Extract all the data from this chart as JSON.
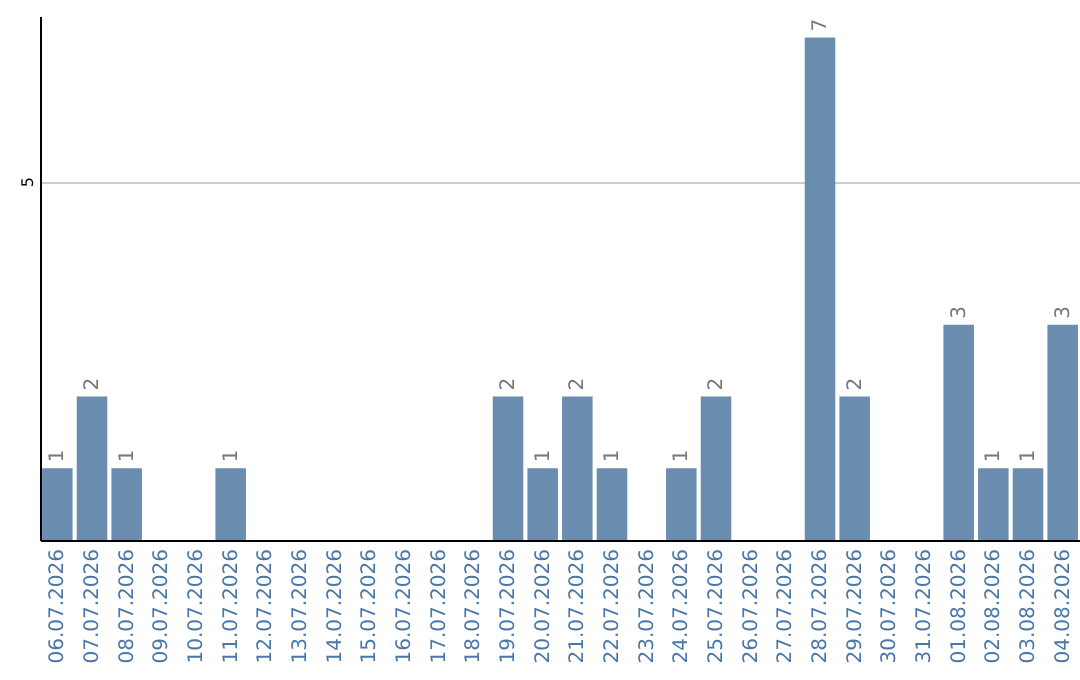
{
  "chart_data": {
    "type": "bar",
    "categories": [
      "06.07.2026",
      "07.07.2026",
      "08.07.2026",
      "09.07.2026",
      "10.07.2026",
      "11.07.2026",
      "12.07.2026",
      "13.07.2026",
      "14.07.2026",
      "15.07.2026",
      "16.07.2026",
      "17.07.2026",
      "18.07.2026",
      "19.07.2026",
      "20.07.2026",
      "21.07.2026",
      "22.07.2026",
      "23.07.2026",
      "24.07.2026",
      "25.07.2026",
      "26.07.2026",
      "27.07.2026",
      "28.07.2026",
      "29.07.2026",
      "30.07.2026",
      "31.07.2026",
      "01.08.2026",
      "02.08.2026",
      "03.08.2026",
      "04.08.2026"
    ],
    "values": [
      1,
      2,
      1,
      0,
      0,
      1,
      0,
      0,
      0,
      0,
      0,
      0,
      0,
      2,
      1,
      2,
      1,
      0,
      1,
      2,
      0,
      0,
      7,
      2,
      0,
      0,
      3,
      1,
      1,
      3
    ],
    "value_labels": [
      "1",
      "2",
      "1",
      null,
      null,
      "1",
      null,
      null,
      null,
      null,
      null,
      null,
      null,
      "2",
      "1",
      "2",
      "1",
      null,
      "1",
      "2",
      null,
      null,
      "7",
      "2",
      null,
      null,
      "3",
      "1",
      "1",
      "3"
    ],
    "color": "#6a8caf",
    "ylim": [
      0,
      7.3
    ],
    "yticks": [
      5
    ],
    "grid": "y"
  }
}
